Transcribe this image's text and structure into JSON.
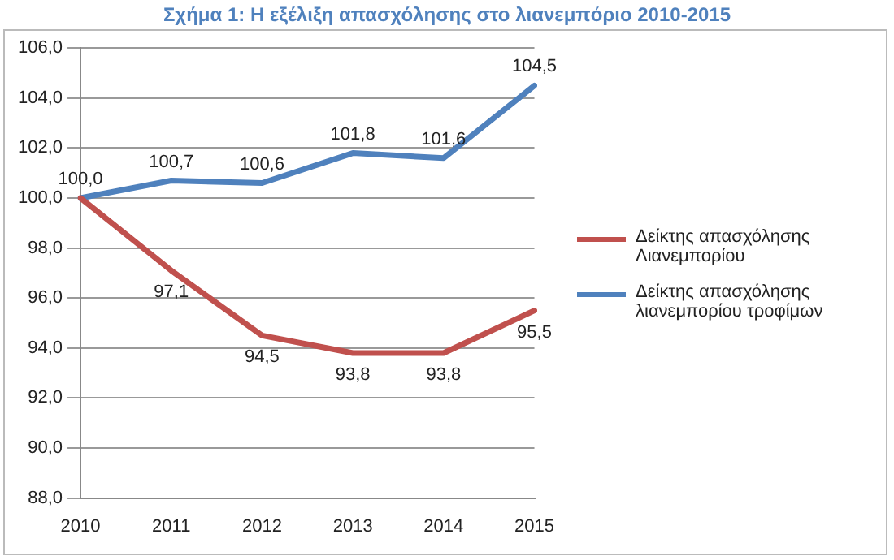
{
  "chart_data": {
    "type": "line",
    "title": "Σχήμα 1: Η εξέλιξη απασχόλησης στο λιανεμπόριο 2010-2015",
    "categories": [
      "2010",
      "2011",
      "2012",
      "2013",
      "2014",
      "2015"
    ],
    "series": [
      {
        "name": "Δείκτης απασχόλησης Λιανεμπορίου",
        "color": "#c0504d",
        "values": [
          100.0,
          97.1,
          94.5,
          93.8,
          93.8,
          95.5
        ],
        "value_labels": [
          null,
          "97,1",
          "94,5",
          "93,8",
          "93,8",
          "95,5"
        ]
      },
      {
        "name": "Δείκτης απασχόλησης λιανεμπορίου τροφίμων",
        "color": "#4f81bd",
        "values": [
          100.0,
          100.7,
          100.6,
          101.8,
          101.6,
          104.5
        ],
        "value_labels": [
          "100,0",
          "100,7",
          "100,6",
          "101,8",
          "101,6",
          "104,5"
        ]
      }
    ],
    "ylim": [
      88,
      106
    ],
    "yticks": [
      {
        "value": 88,
        "label": "88,0"
      },
      {
        "value": 90,
        "label": "90,0"
      },
      {
        "value": 92,
        "label": "92,0"
      },
      {
        "value": 94,
        "label": "94,0"
      },
      {
        "value": 96,
        "label": "96,0"
      },
      {
        "value": 98,
        "label": "98,0"
      },
      {
        "value": 100,
        "label": "100,0"
      },
      {
        "value": 102,
        "label": "102,0"
      },
      {
        "value": 104,
        "label": "104,0"
      },
      {
        "value": 106,
        "label": "106,0"
      }
    ],
    "grid": "y",
    "legend": "right",
    "marker": "none",
    "line_style": "solid"
  }
}
